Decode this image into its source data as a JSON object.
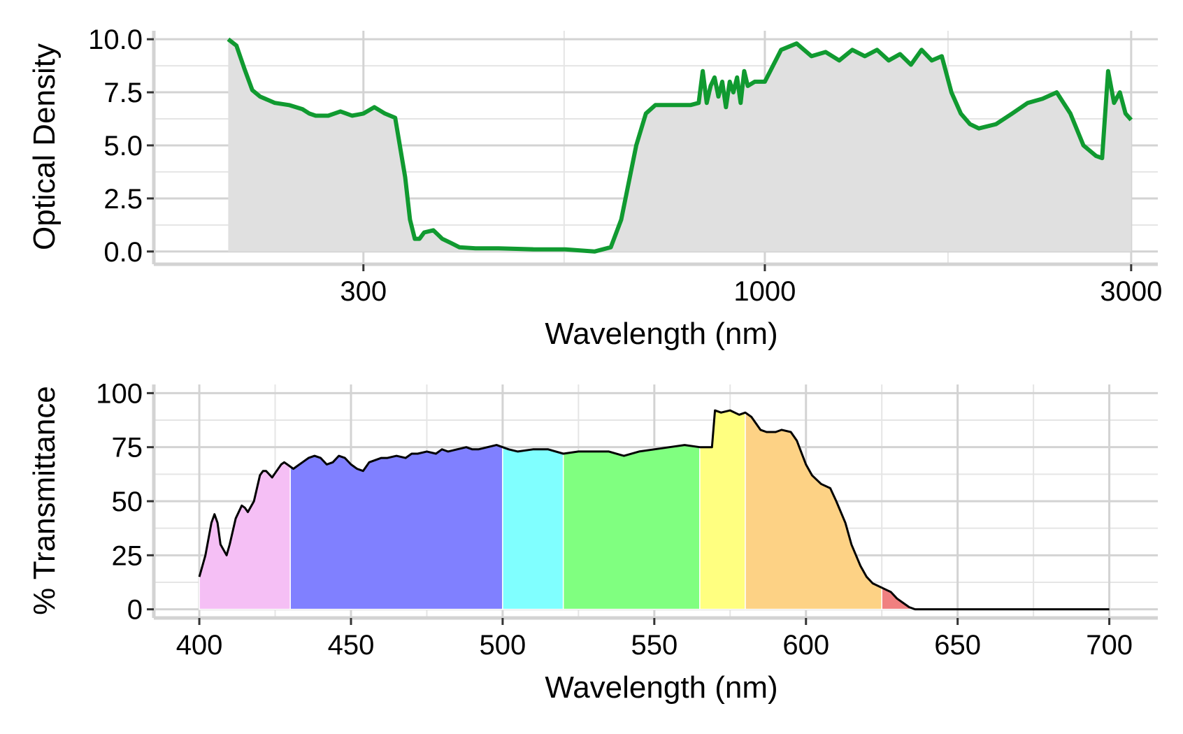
{
  "chart_data": [
    {
      "type": "area",
      "ylabel": "Optical Density",
      "xlabel": "Wavelength (nm)",
      "x_scale": "log",
      "xlim": [
        160,
        3250
      ],
      "ylim": [
        -0.6,
        10.4
      ],
      "xticks": [
        300,
        1000,
        3000
      ],
      "xtick_labels": [
        "300",
        "1000",
        "3000"
      ],
      "yticks": [
        0,
        2.5,
        5,
        7.5,
        10
      ],
      "ytick_labels": [
        "0.0",
        "2.5",
        "5.0",
        "7.5",
        "10.0"
      ],
      "grid": true,
      "fill_color": "#e0e0e0",
      "line_color": "#109a30",
      "series": [
        {
          "x": [
            200,
            205,
            210,
            215,
            220,
            230,
            240,
            250,
            255,
            260,
            270,
            275,
            280,
            285,
            290,
            300,
            310,
            320,
            330,
            340,
            345,
            350,
            355,
            360,
            370,
            375,
            380,
            390,
            400,
            420,
            450,
            500,
            550,
            600,
            630,
            650,
            680,
            700,
            720,
            750,
            800,
            820,
            830,
            840,
            850,
            860,
            870,
            880,
            890,
            900,
            910,
            920,
            930,
            940,
            950,
            970,
            1000,
            1050,
            1100,
            1150,
            1200,
            1250,
            1300,
            1350,
            1400,
            1450,
            1500,
            1550,
            1600,
            1650,
            1700,
            1750,
            1800,
            1850,
            1900,
            2000,
            2100,
            2200,
            2300,
            2400,
            2500,
            2600,
            2700,
            2750,
            2800,
            2850,
            2900,
            2950,
            3000
          ],
          "y": [
            10.0,
            9.7,
            8.6,
            7.6,
            7.3,
            7.0,
            6.9,
            6.7,
            6.5,
            6.4,
            6.4,
            6.5,
            6.6,
            6.5,
            6.4,
            6.5,
            6.8,
            6.5,
            6.3,
            3.5,
            1.5,
            0.6,
            0.6,
            0.9,
            1.0,
            0.8,
            0.6,
            0.4,
            0.2,
            0.15,
            0.15,
            0.1,
            0.1,
            0.0,
            0.2,
            1.5,
            5.0,
            6.5,
            6.9,
            6.9,
            6.9,
            7.0,
            8.5,
            7.0,
            7.8,
            8.2,
            7.3,
            8.0,
            6.8,
            8.0,
            7.5,
            8.2,
            7.0,
            8.5,
            7.8,
            8.0,
            8.0,
            9.5,
            9.8,
            9.2,
            9.4,
            9.0,
            9.5,
            9.2,
            9.5,
            9.0,
            9.3,
            8.8,
            9.5,
            9.0,
            9.2,
            7.5,
            6.5,
            6.0,
            5.8,
            6.0,
            6.5,
            7.0,
            7.2,
            7.5,
            6.5,
            5.0,
            4.5,
            4.4,
            8.5,
            7.0,
            7.5,
            6.5,
            6.2
          ]
        }
      ]
    },
    {
      "type": "area",
      "ylabel": "% Transmittance",
      "xlabel": "Wavelength (nm)",
      "xlim": [
        385,
        716
      ],
      "ylim": [
        -4,
        104
      ],
      "xticks": [
        400,
        450,
        500,
        550,
        600,
        650,
        700
      ],
      "xtick_labels": [
        "400",
        "450",
        "500",
        "550",
        "600",
        "650",
        "700"
      ],
      "yticks": [
        0,
        25,
        50,
        75,
        100
      ],
      "ytick_labels": [
        "0",
        "25",
        "50",
        "75",
        "100"
      ],
      "grid": true,
      "line_color": "#000000",
      "series": [
        {
          "x": [
            400,
            402,
            404,
            405,
            406,
            407,
            409,
            410,
            412,
            414,
            415,
            416,
            418,
            420,
            421,
            422,
            424,
            425,
            427,
            428,
            429,
            430,
            431,
            432,
            434,
            436,
            438,
            440,
            442,
            444,
            446,
            448,
            450,
            452,
            454,
            455,
            456,
            458,
            460,
            462,
            465,
            468,
            470,
            472,
            475,
            478,
            480,
            482,
            485,
            488,
            490,
            492,
            495,
            498,
            500,
            502,
            505,
            510,
            515,
            520,
            525,
            530,
            535,
            540,
            545,
            550,
            555,
            560,
            565,
            569,
            570,
            572,
            575,
            578,
            580,
            582,
            585,
            587,
            590,
            592,
            595,
            597,
            600,
            602,
            605,
            608,
            610,
            613,
            615,
            618,
            620,
            622,
            625,
            628,
            630,
            632,
            634,
            636,
            640,
            650,
            660,
            680,
            700
          ],
          "y": [
            15,
            25,
            40,
            44,
            40,
            30,
            25,
            30,
            42,
            48,
            47,
            45,
            50,
            62,
            64,
            64,
            61,
            63,
            67,
            68,
            67,
            66,
            65,
            66,
            68,
            70,
            71,
            70,
            67,
            68,
            71,
            70,
            67,
            65,
            64,
            66,
            68,
            69,
            70,
            70,
            71,
            70,
            72,
            72,
            73,
            72,
            74,
            73,
            74,
            75,
            74,
            74,
            75,
            76,
            75,
            74,
            73,
            74,
            74,
            72,
            73,
            73,
            73,
            71,
            73,
            74,
            75,
            76,
            75,
            75,
            92,
            91,
            92,
            90,
            91,
            89,
            83,
            82,
            82,
            83,
            82,
            78,
            67,
            62,
            58,
            56,
            50,
            40,
            30,
            20,
            15,
            12,
            10,
            8,
            5,
            3,
            1,
            0,
            0,
            0,
            0,
            0,
            0
          ]
        }
      ],
      "color_bands": [
        {
          "from": 400,
          "to": 430,
          "color": "#f5bff5"
        },
        {
          "from": 430,
          "to": 500,
          "color": "#8080ff"
        },
        {
          "from": 500,
          "to": 520,
          "color": "#80ffff"
        },
        {
          "from": 520,
          "to": 565,
          "color": "#80ff80"
        },
        {
          "from": 565,
          "to": 580,
          "color": "#ffff80"
        },
        {
          "from": 580,
          "to": 625,
          "color": "#fdd285"
        },
        {
          "from": 625,
          "to": 635,
          "color": "#f08080"
        }
      ]
    }
  ]
}
